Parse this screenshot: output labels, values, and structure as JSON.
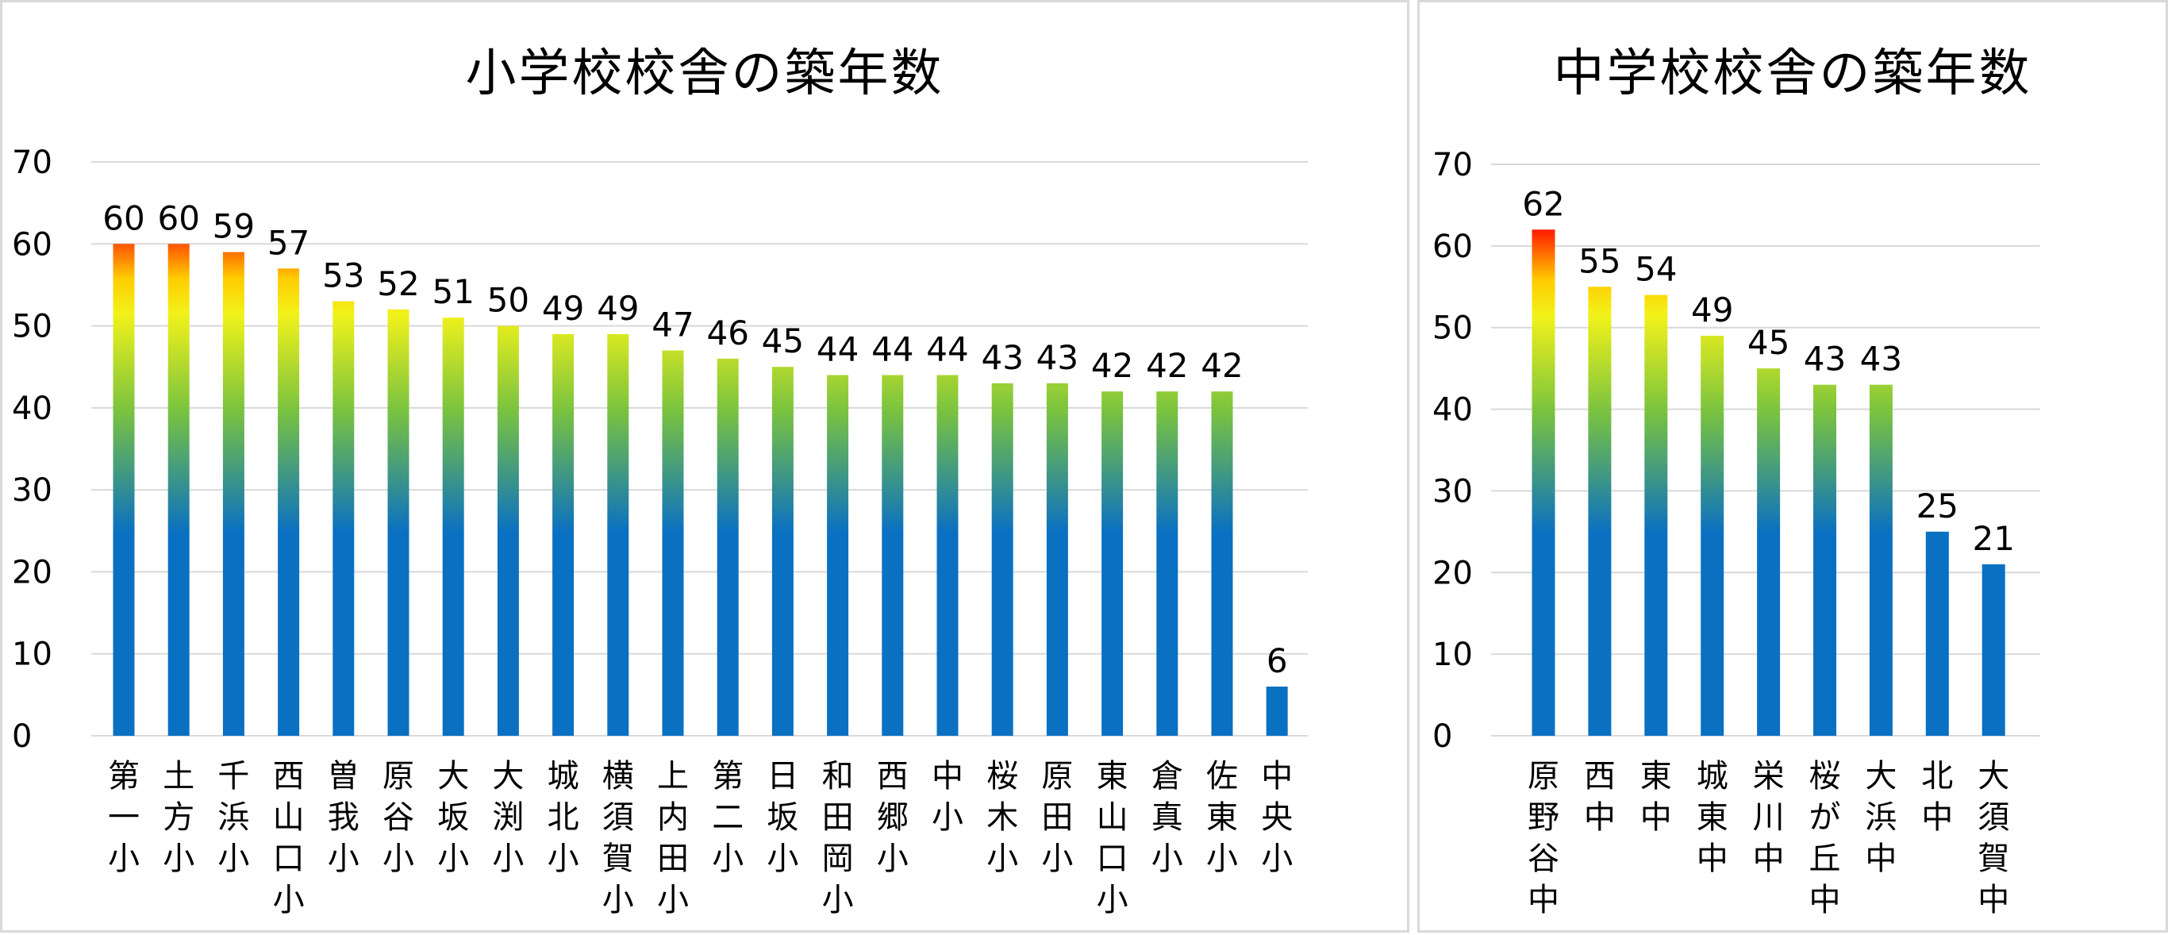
{
  "chart_data": [
    {
      "type": "bar",
      "title": "小学校校舎の築年数",
      "categories": [
        "第一小",
        "土方小",
        "千浜小",
        "西山口小",
        "曽我小",
        "原谷小",
        "大坂小",
        "大渕小",
        "城北小",
        "横須賀小",
        "上内田小",
        "第二小",
        "日坂小",
        "和田岡小",
        "西郷小",
        "中小",
        "桜木小",
        "原田小",
        "東山口小",
        "倉真小",
        "佐東小",
        "中央小"
      ],
      "values": [
        60,
        60,
        59,
        57,
        53,
        52,
        51,
        50,
        49,
        49,
        47,
        46,
        45,
        44,
        44,
        44,
        43,
        43,
        42,
        42,
        42,
        6
      ],
      "ylim": [
        0,
        70
      ],
      "yticks": [
        0,
        10,
        20,
        30,
        40,
        50,
        60,
        70
      ],
      "data_labels": true,
      "grid": true,
      "colors": {
        "low": "#0a70c2",
        "mid": "#f2f21a",
        "high": "#ff1a00"
      }
    },
    {
      "type": "bar",
      "title": "中学校校舎の築年数",
      "categories": [
        "原野谷中",
        "西中",
        "東中",
        "城東中",
        "栄川中",
        "桜が丘中",
        "大浜中",
        "北中",
        "大須賀中"
      ],
      "values": [
        62,
        55,
        54,
        49,
        45,
        43,
        43,
        25,
        21
      ],
      "ylim": [
        0,
        70
      ],
      "yticks": [
        0,
        10,
        20,
        30,
        40,
        50,
        60,
        70
      ],
      "data_labels": true,
      "grid": true,
      "colors": {
        "low": "#0a70c2",
        "mid": "#f2f21a",
        "high": "#ff1a00"
      }
    }
  ]
}
